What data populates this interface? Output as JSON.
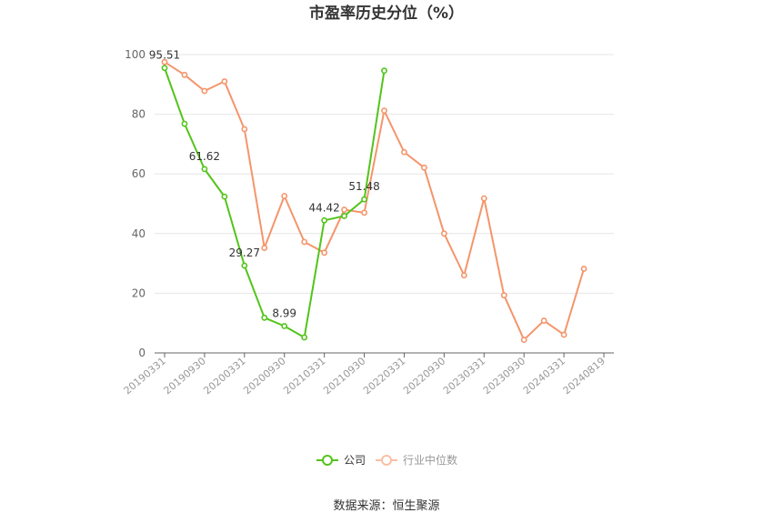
{
  "chart_data": {
    "type": "line",
    "title": "市盈率历史分位（%）",
    "source": "数据来源：恒生聚源",
    "ylim": [
      0,
      100
    ],
    "y_ticks": [
      "0",
      "20",
      "40",
      "60",
      "80",
      "100"
    ],
    "x": [
      "20190331",
      "20190630",
      "20190930",
      "20191231",
      "20200331",
      "20200630",
      "20200930",
      "20201231",
      "20210331",
      "20210630",
      "20210930",
      "20211231",
      "20220331",
      "20220630",
      "20220930",
      "20221231",
      "20230331",
      "20230630",
      "20230930",
      "20231231",
      "20240331",
      "20240630",
      "20240819"
    ],
    "x_tick_labels": [
      "20190331",
      "20190930",
      "20200331",
      "20200930",
      "20210331",
      "20210930",
      "20220331",
      "20220930",
      "20230331",
      "20230930",
      "20240331",
      "20240819"
    ],
    "series": [
      {
        "name": "公司",
        "color": "#52c41a",
        "values": [
          95.51,
          76.8,
          61.62,
          52.4,
          29.27,
          11.8,
          8.99,
          5.2,
          44.42,
          45.9,
          51.48,
          94.6,
          null,
          null,
          null,
          null,
          null,
          null,
          null,
          null,
          null,
          null,
          null
        ]
      },
      {
        "name": "行业中位数",
        "color": "#f4956b",
        "values": [
          97.5,
          93.2,
          87.8,
          91.0,
          75.0,
          35.2,
          52.6,
          37.2,
          33.6,
          48.0,
          47.0,
          81.2,
          67.3,
          62.1,
          40.0,
          26.0,
          51.8,
          19.3,
          4.4,
          10.8,
          6.1,
          28.2,
          null
        ]
      }
    ],
    "data_labels": [
      {
        "series": 0,
        "index": 0,
        "text": "95.51"
      },
      {
        "series": 0,
        "index": 2,
        "text": "61.62"
      },
      {
        "series": 0,
        "index": 4,
        "text": "29.27"
      },
      {
        "series": 0,
        "index": 6,
        "text": "8.99"
      },
      {
        "series": 0,
        "index": 8,
        "text": "44.42"
      },
      {
        "series": 0,
        "index": 10,
        "text": "51.48"
      }
    ],
    "legend": [
      "公司",
      "行业中位数"
    ],
    "legend_position": "bottom-center",
    "grid": true
  }
}
